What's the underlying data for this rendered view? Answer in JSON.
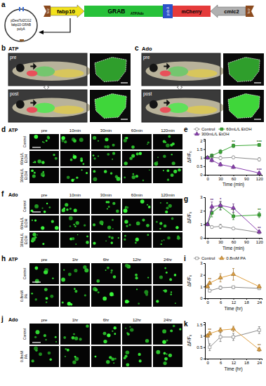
{
  "panel_a": {
    "letter": "a",
    "plasmid": [
      "pDestTol2CG2",
      "fabp10-GRAB",
      "polyA"
    ],
    "elements": [
      "Tol2",
      "fabp10",
      "GRAB",
      "ATP/Ado",
      "poly A",
      "mCherry",
      "cmlc2",
      "Tol2"
    ]
  },
  "fish_panels": [
    {
      "letter": "b",
      "title": "ATP",
      "rows": [
        "pre",
        "post"
      ]
    },
    {
      "letter": "c",
      "title": "Ado",
      "rows": [
        "pre",
        "post"
      ]
    }
  ],
  "micro_panels": [
    {
      "letter": "d",
      "title": "ATP",
      "columns": [
        "pre",
        "10min",
        "30min",
        "60min",
        "120min"
      ],
      "rows": [
        "Control",
        "60mL/L EtOH",
        "300mL/L EtOH"
      ]
    },
    {
      "letter": "f",
      "title": "Ado",
      "columns": [
        "pre",
        "10min",
        "30min",
        "60min",
        "120min"
      ],
      "rows": [
        "Control",
        "60mL/L EtOH",
        "300mL/L EtOH"
      ]
    },
    {
      "letter": "h",
      "title": "ATP",
      "columns": [
        "pre",
        "1hr",
        "6hr",
        "12hr",
        "24hr"
      ],
      "rows": [
        "Control",
        "0.8mM PA"
      ]
    },
    {
      "letter": "j",
      "title": "Ado",
      "columns": [
        "pre",
        "1hr",
        "6hr",
        "12hr",
        "24hr"
      ],
      "rows": [
        "Control",
        "0.8mM PA"
      ]
    }
  ],
  "chart_letters": [
    "e",
    "g",
    "i",
    "k"
  ],
  "chart_data": [
    {
      "type": "line",
      "x": [
        0,
        10,
        30,
        60,
        120
      ],
      "x_label": "Time (min)",
      "y_label": "ΔF/F₀",
      "xlim": [
        -6,
        126
      ],
      "xticks": [
        0,
        30,
        60,
        90,
        120
      ],
      "ylim": [
        0,
        2.1
      ],
      "yticks": [
        0,
        0.5,
        1,
        1.5,
        2
      ],
      "legend": "top",
      "series": [
        {
          "name": "Control",
          "color": "#8c8c8c",
          "marker": "open-circle",
          "values": [
            1,
            1.02,
            0.98,
            1.02,
            0.9
          ],
          "errors": [
            0,
            0.08,
            0.1,
            0.08,
            0.1
          ]
        },
        {
          "name": "60mL/L EtOH",
          "color": "#3aa935",
          "marker": "square",
          "values": [
            1,
            1.12,
            1.35,
            1.7,
            1.75
          ],
          "errors": [
            0,
            0.1,
            0.12,
            0.1,
            0.08
          ],
          "significance": [
            null,
            null,
            null,
            "**",
            "***"
          ]
        },
        {
          "name": "300mL/L EtOH",
          "color": "#8a3fb0",
          "marker": "triangle",
          "values": [
            1,
            0.85,
            0.6,
            0.45,
            0.1
          ],
          "errors": [
            0,
            0.1,
            0.1,
            0.08,
            0.05
          ],
          "significance": [
            null,
            "*",
            null,
            null,
            "***"
          ]
        }
      ]
    },
    {
      "type": "line",
      "x": [
        0,
        10,
        30,
        60,
        120
      ],
      "x_label": "Time (min)",
      "y_label": "ΔF/F₀",
      "xlim": [
        -6,
        126
      ],
      "xticks": [
        0,
        30,
        60,
        90,
        120
      ],
      "ylim": [
        0,
        3
      ],
      "yticks": [
        0,
        1,
        2,
        3
      ],
      "series": [
        {
          "name": "Control",
          "color": "#8c8c8c",
          "marker": "open-circle",
          "values": [
            1,
            0.8,
            0.85,
            0.7,
            0.4
          ],
          "errors": [
            0,
            0.1,
            0.15,
            0.1,
            0.08
          ]
        },
        {
          "name": "60mL/L EtOH",
          "color": "#3aa935",
          "marker": "square",
          "values": [
            1,
            1.85,
            2.35,
            1.6,
            1.7
          ],
          "errors": [
            0,
            0.3,
            0.3,
            0.25,
            0.2
          ],
          "significance": [
            null,
            null,
            null,
            "*",
            "**"
          ]
        },
        {
          "name": "300mL/L EtOH",
          "color": "#8a3fb0",
          "marker": "triangle",
          "values": [
            1,
            2.3,
            2.4,
            2.2,
            0.45
          ],
          "errors": [
            0,
            0.35,
            0.3,
            0.3,
            0.1
          ],
          "significance": [
            null,
            "**",
            "*",
            null,
            "**"
          ]
        }
      ]
    },
    {
      "type": "line",
      "x": [
        0,
        1,
        6,
        12,
        24
      ],
      "x_label": "Time (hr)",
      "y_label": "ΔF/F₀",
      "xlim": [
        -1.2,
        25.2
      ],
      "xticks": [
        0,
        6,
        12,
        18,
        24
      ],
      "ylim": [
        0,
        3
      ],
      "yticks": [
        0,
        1,
        2,
        3
      ],
      "legend": "top",
      "series": [
        {
          "name": "Control",
          "color": "#8c8c8c",
          "marker": "open-square",
          "values": [
            1,
            0.65,
            0.9,
            0.95,
            0.85
          ],
          "errors": [
            0,
            0.1,
            0.15,
            0.1,
            0.1
          ]
        },
        {
          "name": "0.8mM PA",
          "color": "#e0a040",
          "marker": "triangle",
          "values": [
            1,
            1.3,
            1.75,
            2.05,
            1.0
          ],
          "errors": [
            0,
            0.12,
            0.35,
            0.5,
            0.15
          ],
          "significance": [
            null,
            "**",
            null,
            null,
            null
          ]
        }
      ]
    },
    {
      "type": "line",
      "x": [
        0,
        1,
        6,
        12,
        24
      ],
      "x_label": "Time (hr)",
      "y_label": "ΔF/F₀",
      "xlim": [
        -1.2,
        25.2
      ],
      "xticks": [
        0,
        6,
        12,
        18,
        24
      ],
      "ylim": [
        0,
        1.6
      ],
      "yticks": [
        0,
        0.5,
        1,
        1.5
      ],
      "series": [
        {
          "name": "Control",
          "color": "#8c8c8c",
          "marker": "open-square",
          "values": [
            1,
            0.5,
            0.95,
            0.95,
            1.25
          ],
          "errors": [
            0,
            0.15,
            0.2,
            0.15,
            0.15
          ]
        },
        {
          "name": "0.8mM PA",
          "color": "#e0a040",
          "marker": "triangle",
          "values": [
            1,
            1.1,
            1.25,
            1.3,
            0.4
          ],
          "errors": [
            0,
            0.08,
            0.1,
            0.12,
            0.08
          ],
          "significance": [
            null,
            "**",
            null,
            null,
            "**"
          ]
        }
      ]
    }
  ]
}
